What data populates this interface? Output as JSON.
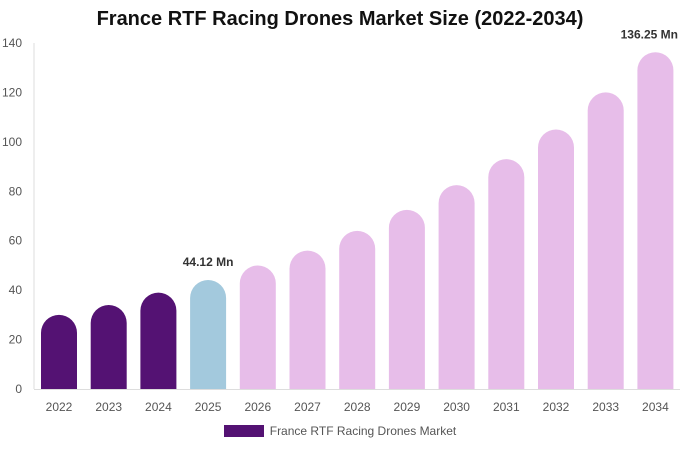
{
  "chart_data": {
    "type": "bar",
    "title": "France RTF Racing Drones Market Size (2022-2034)",
    "categories": [
      "2022",
      "2023",
      "2024",
      "2025",
      "2026",
      "2027",
      "2028",
      "2029",
      "2030",
      "2031",
      "2032",
      "2033",
      "2034"
    ],
    "series": [
      {
        "name": "France RTF Racing Drones Market",
        "values": [
          30,
          34,
          39,
          44.12,
          50,
          56,
          64,
          72.5,
          82.5,
          93,
          105,
          120,
          136.25
        ]
      }
    ],
    "bar_colors": [
      "#541273",
      "#541273",
      "#541273",
      "#a3c9dd",
      "#e7bde9",
      "#e7bde9",
      "#e7bde9",
      "#e7bde9",
      "#e7bde9",
      "#e7bde9",
      "#e7bde9",
      "#e7bde9",
      "#e7bde9"
    ],
    "data_labels": [
      {
        "category": "2025",
        "text": "44.12 Mn"
      },
      {
        "category": "2034",
        "text": "136.25 Mn"
      }
    ],
    "yticks": [
      0,
      20,
      40,
      60,
      80,
      100,
      120,
      140
    ],
    "ylim": [
      0,
      140
    ],
    "xlabel": "",
    "ylabel": "",
    "grid": false,
    "legend": {
      "position": "bottom",
      "label": "France RTF Racing Drones Market",
      "color": "#541273"
    }
  }
}
